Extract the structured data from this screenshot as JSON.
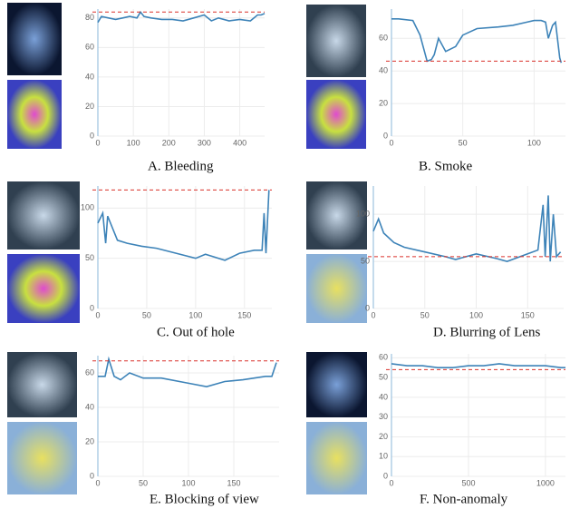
{
  "chart_data": [
    {
      "type": "line",
      "title": "A. Bleeding",
      "xlim": [
        0,
        470
      ],
      "xticks": [
        0,
        100,
        200,
        300,
        400
      ],
      "ylim": [
        0,
        86
      ],
      "yticks": [
        0,
        20,
        40,
        60,
        80
      ],
      "threshold": 84,
      "grid": true,
      "series": [
        {
          "color": "#3d83b8",
          "x": [
            0,
            10,
            30,
            50,
            70,
            90,
            110,
            120,
            130,
            150,
            180,
            210,
            240,
            270,
            300,
            320,
            340,
            370,
            400,
            430,
            450,
            460,
            470
          ],
          "values": [
            77,
            81,
            80,
            79,
            80,
            81,
            80,
            84,
            81,
            80,
            79,
            79,
            78,
            80,
            82,
            78,
            80,
            78,
            79,
            78,
            82,
            82,
            83
          ]
        }
      ]
    },
    {
      "type": "line",
      "title": "B. Smoke",
      "xlim": [
        0,
        122
      ],
      "xticks": [
        0,
        50,
        100
      ],
      "ylim": [
        0,
        78
      ],
      "yticks": [
        0,
        20,
        40,
        60
      ],
      "threshold": 46,
      "grid": true,
      "series": [
        {
          "color": "#3d83b8",
          "x": [
            0,
            5,
            15,
            20,
            25,
            28,
            30,
            33,
            38,
            45,
            50,
            60,
            75,
            85,
            95,
            100,
            105,
            108,
            110,
            113,
            115,
            118,
            119
          ],
          "values": [
            72,
            72,
            71,
            62,
            46,
            47,
            50,
            60,
            52,
            55,
            62,
            66,
            67,
            68,
            70,
            71,
            71,
            70,
            60,
            68,
            70,
            48,
            45
          ]
        }
      ]
    },
    {
      "type": "line",
      "title": "C. Out of hole",
      "xlim": [
        0,
        178
      ],
      "xticks": [
        0,
        50,
        100,
        150
      ],
      "ylim": [
        0,
        122
      ],
      "yticks": [
        0,
        50,
        100
      ],
      "threshold": 118,
      "grid": true,
      "series": [
        {
          "color": "#3d83b8",
          "x": [
            0,
            5,
            8,
            10,
            15,
            20,
            30,
            45,
            60,
            80,
            100,
            110,
            130,
            145,
            160,
            168,
            170,
            172,
            175
          ],
          "values": [
            85,
            95,
            65,
            92,
            80,
            68,
            65,
            62,
            60,
            55,
            50,
            54,
            48,
            55,
            58,
            58,
            95,
            55,
            118
          ]
        }
      ]
    },
    {
      "type": "line",
      "title": "D. Blurring of Lens",
      "xlim": [
        0,
        185
      ],
      "xticks": [
        0,
        50,
        100,
        150
      ],
      "ylim": [
        0,
        130
      ],
      "yticks": [
        0,
        50,
        100
      ],
      "threshold": 55,
      "grid": true,
      "series": [
        {
          "color": "#3d83b8",
          "x": [
            0,
            5,
            10,
            20,
            30,
            50,
            70,
            80,
            100,
            120,
            130,
            150,
            160,
            165,
            167,
            170,
            172,
            175,
            178,
            182
          ],
          "values": [
            82,
            95,
            80,
            70,
            65,
            60,
            55,
            52,
            58,
            53,
            50,
            58,
            62,
            110,
            55,
            120,
            50,
            100,
            55,
            60
          ]
        }
      ]
    },
    {
      "type": "line",
      "title": "E. Blocking of view",
      "xlim": [
        0,
        200
      ],
      "xticks": [
        0,
        50,
        100,
        150
      ],
      "ylim": [
        0,
        70
      ],
      "yticks": [
        0,
        20,
        40,
        60
      ],
      "threshold": 67,
      "grid": true,
      "series": [
        {
          "color": "#3d83b8",
          "x": [
            0,
            8,
            12,
            18,
            25,
            35,
            50,
            70,
            100,
            120,
            140,
            160,
            185,
            192,
            197
          ],
          "values": [
            58,
            58,
            68,
            58,
            56,
            60,
            57,
            57,
            54,
            52,
            55,
            56,
            58,
            58,
            66
          ]
        }
      ]
    },
    {
      "type": "line",
      "title": "F. Non-anomaly",
      "xlim": [
        0,
        1130
      ],
      "xticks": [
        0,
        500,
        1000
      ],
      "ylim": [
        0,
        62
      ],
      "yticks": [
        0,
        10,
        20,
        30,
        40,
        50,
        60
      ],
      "threshold": 54,
      "grid": true,
      "series": [
        {
          "color": "#3d83b8",
          "x": [
            0,
            100,
            200,
            300,
            400,
            500,
            600,
            700,
            800,
            900,
            1000,
            1100,
            1130
          ],
          "values": [
            57,
            56,
            56,
            55,
            55,
            56,
            56,
            57,
            56,
            56,
            56,
            55,
            55
          ]
        }
      ]
    }
  ]
}
